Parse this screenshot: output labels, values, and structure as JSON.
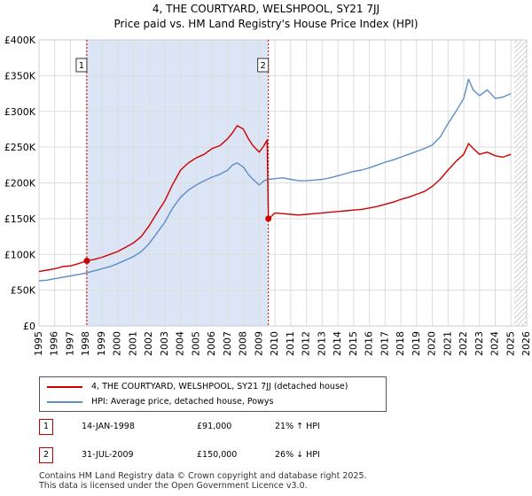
{
  "title_line1": "4, THE COURTYARD, WELSHPOOL, SY21 7JJ",
  "title_line2": "Price paid vs. HM Land Registry's House Price Index (HPI)",
  "colors": {
    "property": "#cc0000",
    "hpi": "#5b8ec8",
    "shade": "#dbe5f5",
    "grid": "#dddddd",
    "hatch": "#b0b0b0"
  },
  "chart_data": {
    "type": "line",
    "title": "4, THE COURTYARD, WELSHPOOL, SY21 7JJ — Price paid vs. HM Land Registry's House Price Index (HPI)",
    "xlabel": "",
    "ylabel": "",
    "xlim": [
      1995,
      2026
    ],
    "ylim": [
      0,
      400000
    ],
    "y_ticks": [
      0,
      50000,
      100000,
      150000,
      200000,
      250000,
      300000,
      350000,
      400000
    ],
    "y_tick_labels": [
      "£0",
      "£50K",
      "£100K",
      "£150K",
      "£200K",
      "£250K",
      "£300K",
      "£350K",
      "£400K"
    ],
    "x_ticks": [
      1995,
      1996,
      1997,
      1998,
      1999,
      2000,
      2001,
      2002,
      2003,
      2004,
      2005,
      2006,
      2007,
      2008,
      2009,
      2010,
      2011,
      2012,
      2013,
      2014,
      2015,
      2016,
      2017,
      2018,
      2019,
      2020,
      2021,
      2022,
      2023,
      2024,
      2025,
      2026
    ],
    "grid": true,
    "shaded_range": [
      1998.04,
      2009.58
    ],
    "hatched_from": 2025.2,
    "series": [
      {
        "name": "4, THE COURTYARD, WELSHPOOL, SY21 7JJ (detached house)",
        "x": [
          1995,
          1995.5,
          1996,
          1996.5,
          1997,
          1997.5,
          1998.04,
          1998.5,
          1999,
          1999.5,
          2000,
          2000.5,
          2001,
          2001.5,
          2002,
          2002.5,
          2003,
          2003.5,
          2004,
          2004.5,
          2005,
          2005.5,
          2006,
          2006.5,
          2007,
          2007.3,
          2007.6,
          2008,
          2008.3,
          2008.6,
          2009,
          2009.3,
          2009.5,
          2009.58,
          2009.8,
          2010,
          2010.5,
          2011,
          2011.5,
          2012,
          2012.5,
          2013,
          2013.5,
          2014,
          2014.5,
          2015,
          2015.5,
          2016,
          2016.5,
          2017,
          2017.5,
          2018,
          2018.5,
          2019,
          2019.5,
          2020,
          2020.5,
          2021,
          2021.5,
          2022,
          2022.3,
          2022.6,
          2023,
          2023.5,
          2024,
          2024.5,
          2025
        ],
        "values": [
          76000,
          78000,
          80000,
          83000,
          84000,
          87000,
          91000,
          93000,
          96000,
          100000,
          104000,
          110000,
          116000,
          125000,
          140000,
          158000,
          175000,
          198000,
          218000,
          228000,
          235000,
          240000,
          248000,
          252000,
          262000,
          270000,
          280000,
          275000,
          262000,
          252000,
          243000,
          252000,
          260000,
          150000,
          154000,
          158000,
          157000,
          156000,
          155000,
          156000,
          157000,
          158000,
          159000,
          160000,
          161000,
          162000,
          163000,
          165000,
          167000,
          170000,
          173000,
          177000,
          180000,
          184000,
          188000,
          195000,
          205000,
          218000,
          230000,
          240000,
          255000,
          248000,
          240000,
          243000,
          238000,
          236000,
          240000
        ]
      },
      {
        "name": "HPI: Average price, detached house, Powys",
        "x": [
          1995,
          1995.5,
          1996,
          1996.5,
          1997,
          1997.5,
          1998,
          1998.5,
          1999,
          1999.5,
          2000,
          2000.5,
          2001,
          2001.5,
          2002,
          2002.5,
          2003,
          2003.5,
          2004,
          2004.5,
          2005,
          2005.5,
          2006,
          2006.5,
          2007,
          2007.3,
          2007.6,
          2008,
          2008.3,
          2008.6,
          2009,
          2009.3,
          2009.6,
          2010,
          2010.5,
          2011,
          2011.5,
          2012,
          2012.5,
          2013,
          2013.5,
          2014,
          2014.5,
          2015,
          2015.5,
          2016,
          2016.5,
          2017,
          2017.5,
          2018,
          2018.5,
          2019,
          2019.5,
          2020,
          2020.5,
          2021,
          2021.5,
          2022,
          2022.3,
          2022.6,
          2023,
          2023.5,
          2024,
          2024.5,
          2025
        ],
        "values": [
          63000,
          64000,
          66000,
          68000,
          70000,
          72000,
          74000,
          77000,
          80000,
          83000,
          87000,
          92000,
          97000,
          104000,
          115000,
          130000,
          145000,
          165000,
          180000,
          190000,
          197000,
          203000,
          208000,
          212000,
          218000,
          225000,
          228000,
          222000,
          212000,
          205000,
          197000,
          203000,
          205000,
          206000,
          207000,
          205000,
          203000,
          203000,
          204000,
          205000,
          207000,
          210000,
          213000,
          216000,
          218000,
          221000,
          225000,
          229000,
          232000,
          236000,
          240000,
          244000,
          248000,
          253000,
          264000,
          283000,
          300000,
          318000,
          345000,
          330000,
          322000,
          330000,
          318000,
          320000,
          325000
        ]
      }
    ],
    "markers": [
      {
        "label": "1",
        "x": 1998.04,
        "y": 91000
      },
      {
        "label": "2",
        "x": 2009.58,
        "y": 150000
      }
    ]
  },
  "legend": {
    "property_label": "4, THE COURTYARD, WELSHPOOL, SY21 7JJ (detached house)",
    "hpi_label": "HPI: Average price, detached house, Powys"
  },
  "sales": [
    {
      "num": "1",
      "date": "14-JAN-1998",
      "price": "£91,000",
      "hpi": "21% ↑ HPI"
    },
    {
      "num": "2",
      "date": "31-JUL-2009",
      "price": "£150,000",
      "hpi": "26% ↓ HPI"
    }
  ],
  "footer_line1": "Contains HM Land Registry data © Crown copyright and database right 2025.",
  "footer_line2": "This data is licensed under the Open Government Licence v3.0."
}
